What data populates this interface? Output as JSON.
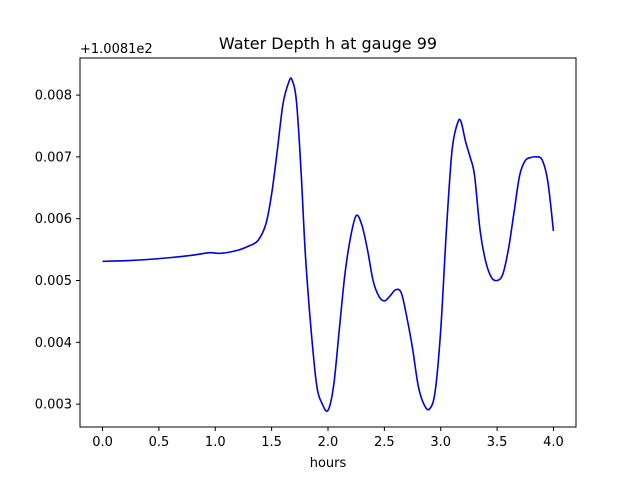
{
  "chart_data": {
    "type": "line",
    "title": "Water Depth h at gauge 99",
    "xlabel": "hours",
    "ylabel": "",
    "offset_label": "+1.0081e2",
    "xlim": [
      -0.2,
      4.2
    ],
    "ylim": [
      0.00263,
      0.0086
    ],
    "xticks": [
      0.0,
      0.5,
      1.0,
      1.5,
      2.0,
      2.5,
      3.0,
      3.5,
      4.0
    ],
    "xtick_labels": [
      "0.0",
      "0.5",
      "1.0",
      "1.5",
      "2.0",
      "2.5",
      "3.0",
      "3.5",
      "4.0"
    ],
    "yticks": [
      0.003,
      0.004,
      0.005,
      0.006,
      0.007,
      0.008
    ],
    "ytick_labels": [
      "0.003",
      "0.004",
      "0.005",
      "0.006",
      "0.007",
      "0.008"
    ],
    "grid": false,
    "series": [
      {
        "color": "#0000dd",
        "x": [
          0.0,
          0.2,
          0.4,
          0.6,
          0.8,
          0.95,
          1.05,
          1.2,
          1.3,
          1.38,
          1.45,
          1.5,
          1.55,
          1.6,
          1.65,
          1.68,
          1.72,
          1.76,
          1.8,
          1.85,
          1.9,
          1.95,
          2.0,
          2.05,
          2.1,
          2.15,
          2.2,
          2.25,
          2.3,
          2.35,
          2.4,
          2.45,
          2.5,
          2.55,
          2.6,
          2.65,
          2.7,
          2.75,
          2.8,
          2.85,
          2.9,
          2.95,
          3.0,
          3.05,
          3.1,
          3.15,
          3.18,
          3.22,
          3.26,
          3.3,
          3.35,
          3.4,
          3.45,
          3.5,
          3.55,
          3.6,
          3.65,
          3.7,
          3.75,
          3.8,
          3.85,
          3.9,
          3.95,
          4.0
        ],
        "y": [
          0.00531,
          0.00532,
          0.00534,
          0.00537,
          0.00541,
          0.00545,
          0.00544,
          0.00549,
          0.00556,
          0.00565,
          0.00592,
          0.0064,
          0.0071,
          0.00785,
          0.0082,
          0.00825,
          0.0079,
          0.0068,
          0.0054,
          0.0042,
          0.0033,
          0.003,
          0.0029,
          0.0033,
          0.0042,
          0.0051,
          0.0057,
          0.00605,
          0.0059,
          0.0055,
          0.005,
          0.00475,
          0.00467,
          0.00475,
          0.00485,
          0.0048,
          0.0044,
          0.0039,
          0.0033,
          0.003,
          0.00292,
          0.0032,
          0.0042,
          0.0058,
          0.0071,
          0.00755,
          0.00757,
          0.00725,
          0.007,
          0.0067,
          0.0058,
          0.0053,
          0.00505,
          0.005,
          0.0051,
          0.0055,
          0.0061,
          0.0067,
          0.00694,
          0.00699,
          0.007,
          0.00695,
          0.0066,
          0.0058
        ]
      }
    ]
  }
}
